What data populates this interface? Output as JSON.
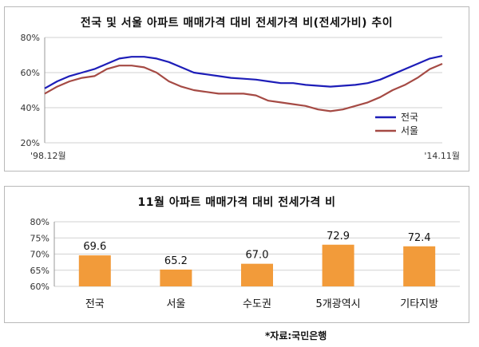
{
  "chart_data": [
    {
      "type": "line",
      "title": "전국 및 서울 아파트 매매가격 대비 전세가격 비(전세가비) 추이",
      "x_start_label": "'98.12월",
      "x_end_label": "'14.11월",
      "ylim": [
        20,
        80
      ],
      "yticks": [
        20,
        40,
        60,
        80
      ],
      "ytick_labels": [
        "20%",
        "40%",
        "60%",
        "80%"
      ],
      "grid": "horizontal",
      "legend": "bottom-right",
      "series": [
        {
          "name": "전국",
          "color": "#1d1db8",
          "values": [
            51,
            55,
            58,
            60,
            62,
            65,
            68,
            69,
            69,
            68,
            66,
            63,
            60,
            59,
            58,
            57,
            56.5,
            56,
            55,
            54,
            54,
            53,
            52.5,
            52,
            52.5,
            53,
            54,
            56,
            59,
            62,
            65,
            68,
            69.5
          ]
        },
        {
          "name": "서울",
          "color": "#a54a44",
          "values": [
            48,
            52,
            55,
            57,
            58,
            62,
            64,
            64,
            63,
            60,
            55,
            52,
            50,
            49,
            48,
            48,
            48,
            47,
            44,
            43,
            42,
            41,
            39,
            38,
            39,
            41,
            43,
            46,
            50,
            53,
            57,
            62,
            65
          ]
        }
      ]
    },
    {
      "type": "bar",
      "title": "11월 아파트 매매가격 대비 전세가격 비",
      "categories": [
        "전국",
        "서울",
        "수도권",
        "5개광역시",
        "기타지방"
      ],
      "values": [
        69.6,
        65.2,
        67.0,
        72.9,
        72.4
      ],
      "value_labels": [
        "69.6",
        "65.2",
        "67.0",
        "72.9",
        "72.4"
      ],
      "ylim": [
        60,
        80
      ],
      "yticks": [
        60,
        65,
        70,
        75,
        80
      ],
      "ytick_labels": [
        "60%",
        "65%",
        "70%",
        "75%",
        "80%"
      ],
      "bar_color": "#f29b3a",
      "grid": "horizontal"
    }
  ],
  "source_note": "*자료:국민은행"
}
